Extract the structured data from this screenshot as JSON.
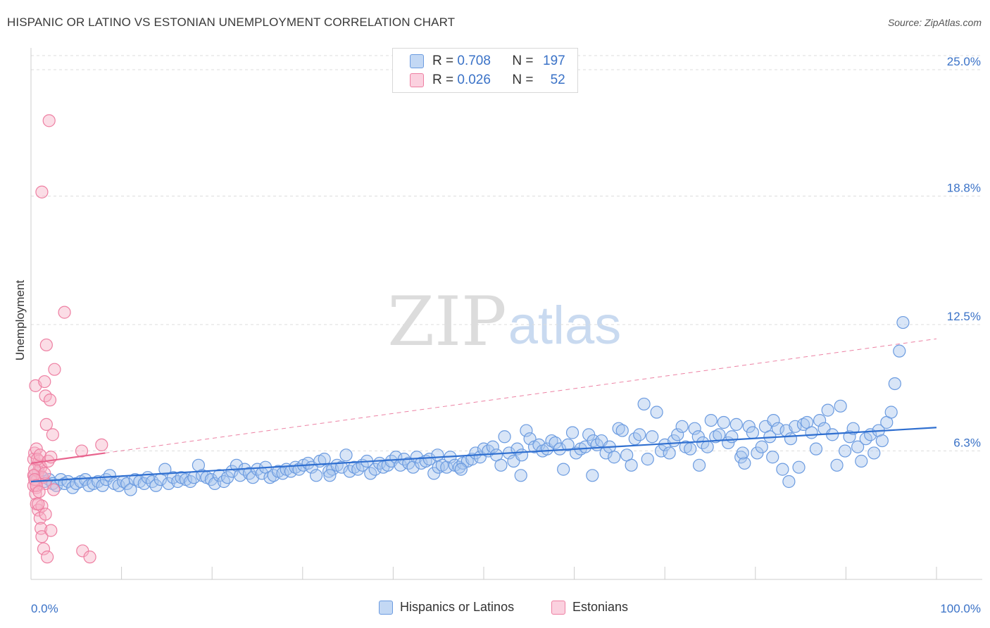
{
  "title": "HISPANIC OR LATINO VS ESTONIAN UNEMPLOYMENT CORRELATION CHART",
  "source": "Source: ZipAtlas.com",
  "watermark": {
    "zip": "ZIP",
    "atlas": "atlas"
  },
  "colors": {
    "blue": "#3a72c7",
    "blue_fill": "#a9c6ee",
    "blue_stroke": "#6b9be0",
    "blue_line": "#2f6fd0",
    "pink_fill": "#f6b3c8",
    "pink_stroke": "#ee7fa2",
    "pink_line": "#e8648e",
    "grid": "#dddddd"
  },
  "legend_top": [
    {
      "r_label": "R = ",
      "r_value": "0.708",
      "n_label": "N = ",
      "n_value": "197",
      "color": "#a9c6ee"
    },
    {
      "r_label": "R = ",
      "r_value": "0.026",
      "n_label": "N = ",
      "n_value": "52",
      "color": "#f6b3c8"
    }
  ],
  "legend_bottom": [
    {
      "label": "Hispanics or Latinos",
      "color": "#a9c6ee"
    },
    {
      "label": "Estonians",
      "color": "#f6b3c8"
    }
  ],
  "chart_data": {
    "type": "scatter",
    "title": "HISPANIC OR LATINO VS ESTONIAN UNEMPLOYMENT CORRELATION CHART",
    "xlabel": "",
    "ylabel": "Unemployment",
    "xlim": [
      0,
      100
    ],
    "ylim": [
      0,
      26.0
    ],
    "x_tick_labels": [
      "0.0%",
      "100.0%"
    ],
    "y_ticks": [
      6.3,
      12.5,
      18.8,
      25.0
    ],
    "y_tick_labels": [
      "6.3%",
      "12.5%",
      "18.8%",
      "25.0%"
    ],
    "grid": "horizontal dashed",
    "legend": "top-center and bottom",
    "series": [
      {
        "name": "Hispanics or Latinos",
        "r": 0.708,
        "n": 197,
        "trend": {
          "x": [
            0,
            100
          ],
          "y": [
            4.8,
            7.45
          ]
        },
        "points": [
          [
            0.5,
            4.9
          ],
          [
            0.8,
            5.3
          ],
          [
            1.2,
            5.0
          ],
          [
            1.5,
            4.8
          ],
          [
            2.0,
            4.9
          ],
          [
            2.4,
            4.7
          ],
          [
            2.8,
            4.6
          ],
          [
            3.3,
            4.9
          ],
          [
            3.7,
            4.7
          ],
          [
            4.1,
            4.8
          ],
          [
            4.6,
            4.5
          ],
          [
            5.0,
            4.7
          ],
          [
            5.5,
            4.8
          ],
          [
            6.0,
            4.9
          ],
          [
            6.4,
            4.6
          ],
          [
            6.9,
            4.7
          ],
          [
            7.4,
            4.8
          ],
          [
            7.9,
            4.6
          ],
          [
            8.3,
            4.9
          ],
          [
            8.7,
            5.1
          ],
          [
            9.2,
            4.7
          ],
          [
            9.7,
            4.6
          ],
          [
            10.2,
            4.8
          ],
          [
            10.6,
            4.7
          ],
          [
            11.0,
            4.4
          ],
          [
            11.5,
            4.9
          ],
          [
            12.0,
            4.8
          ],
          [
            12.5,
            4.7
          ],
          [
            12.9,
            5.0
          ],
          [
            13.4,
            4.8
          ],
          [
            13.8,
            4.6
          ],
          [
            14.3,
            4.9
          ],
          [
            14.8,
            5.4
          ],
          [
            15.2,
            4.7
          ],
          [
            15.7,
            5.0
          ],
          [
            16.2,
            4.8
          ],
          [
            16.6,
            5.0
          ],
          [
            17.1,
            4.9
          ],
          [
            17.6,
            4.8
          ],
          [
            18.0,
            5.0
          ],
          [
            18.5,
            5.6
          ],
          [
            18.9,
            5.1
          ],
          [
            19.4,
            5.0
          ],
          [
            19.9,
            4.9
          ],
          [
            20.3,
            4.7
          ],
          [
            20.8,
            5.1
          ],
          [
            21.3,
            4.8
          ],
          [
            21.7,
            5.0
          ],
          [
            22.2,
            5.3
          ],
          [
            22.7,
            5.6
          ],
          [
            23.1,
            5.1
          ],
          [
            23.6,
            5.4
          ],
          [
            24.1,
            5.2
          ],
          [
            24.5,
            5.0
          ],
          [
            25.0,
            5.4
          ],
          [
            25.5,
            5.2
          ],
          [
            25.9,
            5.5
          ],
          [
            26.4,
            5.0
          ],
          [
            26.8,
            5.1
          ],
          [
            27.3,
            5.3
          ],
          [
            27.8,
            5.2
          ],
          [
            28.2,
            5.4
          ],
          [
            28.7,
            5.3
          ],
          [
            29.2,
            5.5
          ],
          [
            29.6,
            5.4
          ],
          [
            30.1,
            5.6
          ],
          [
            30.6,
            5.7
          ],
          [
            31.0,
            5.5
          ],
          [
            31.5,
            5.1
          ],
          [
            31.9,
            5.8
          ],
          [
            32.4,
            5.9
          ],
          [
            32.9,
            5.3
          ],
          [
            33.3,
            5.4
          ],
          [
            33.8,
            5.6
          ],
          [
            34.3,
            5.5
          ],
          [
            34.8,
            6.1
          ],
          [
            35.2,
            5.3
          ],
          [
            35.7,
            5.5
          ],
          [
            36.1,
            5.4
          ],
          [
            36.6,
            5.6
          ],
          [
            37.1,
            5.8
          ],
          [
            37.5,
            5.2
          ],
          [
            38.0,
            5.4
          ],
          [
            38.5,
            5.7
          ],
          [
            38.9,
            5.5
          ],
          [
            39.4,
            5.6
          ],
          [
            39.8,
            5.8
          ],
          [
            40.3,
            6.0
          ],
          [
            40.8,
            5.6
          ],
          [
            41.2,
            5.9
          ],
          [
            41.7,
            5.7
          ],
          [
            42.2,
            5.5
          ],
          [
            42.6,
            6.0
          ],
          [
            43.1,
            5.7
          ],
          [
            43.6,
            5.8
          ],
          [
            44.0,
            5.9
          ],
          [
            44.5,
            5.2
          ],
          [
            45.0,
            5.5
          ],
          [
            45.4,
            5.6
          ],
          [
            45.9,
            5.5
          ],
          [
            46.3,
            6.0
          ],
          [
            46.8,
            5.6
          ],
          [
            47.3,
            5.5
          ],
          [
            47.7,
            5.7
          ],
          [
            48.2,
            5.8
          ],
          [
            48.7,
            5.9
          ],
          [
            49.1,
            6.2
          ],
          [
            49.6,
            6.0
          ],
          [
            50.0,
            6.4
          ],
          [
            50.5,
            6.3
          ],
          [
            51.0,
            6.5
          ],
          [
            51.4,
            6.1
          ],
          [
            51.9,
            5.6
          ],
          [
            52.3,
            7.0
          ],
          [
            52.8,
            6.2
          ],
          [
            53.3,
            5.8
          ],
          [
            53.7,
            6.4
          ],
          [
            54.2,
            6.1
          ],
          [
            54.7,
            7.3
          ],
          [
            55.1,
            6.9
          ],
          [
            55.6,
            6.5
          ],
          [
            56.1,
            6.6
          ],
          [
            56.5,
            6.3
          ],
          [
            57.0,
            6.4
          ],
          [
            57.5,
            6.8
          ],
          [
            57.9,
            6.7
          ],
          [
            58.4,
            6.4
          ],
          [
            58.8,
            5.4
          ],
          [
            59.3,
            6.6
          ],
          [
            59.8,
            7.2
          ],
          [
            60.2,
            6.2
          ],
          [
            60.7,
            6.4
          ],
          [
            61.2,
            6.5
          ],
          [
            61.6,
            7.1
          ],
          [
            62.1,
            6.8
          ],
          [
            62.5,
            6.6
          ],
          [
            63.0,
            6.8
          ],
          [
            63.5,
            6.2
          ],
          [
            63.9,
            6.5
          ],
          [
            64.4,
            6.0
          ],
          [
            64.9,
            7.4
          ],
          [
            65.3,
            7.3
          ],
          [
            65.8,
            6.1
          ],
          [
            66.3,
            5.6
          ],
          [
            66.7,
            6.9
          ],
          [
            67.2,
            7.1
          ],
          [
            67.7,
            8.6
          ],
          [
            68.1,
            5.9
          ],
          [
            68.6,
            7.0
          ],
          [
            69.1,
            8.2
          ],
          [
            69.6,
            6.3
          ],
          [
            70.0,
            6.6
          ],
          [
            70.5,
            6.2
          ],
          [
            71.0,
            6.8
          ],
          [
            71.4,
            7.1
          ],
          [
            71.9,
            7.5
          ],
          [
            72.3,
            6.5
          ],
          [
            72.8,
            6.4
          ],
          [
            73.3,
            7.4
          ],
          [
            73.7,
            7.0
          ],
          [
            74.2,
            6.7
          ],
          [
            74.7,
            6.5
          ],
          [
            75.1,
            7.8
          ],
          [
            75.6,
            7.0
          ],
          [
            76.0,
            7.1
          ],
          [
            76.5,
            7.7
          ],
          [
            77.0,
            6.7
          ],
          [
            77.4,
            7.0
          ],
          [
            77.9,
            7.6
          ],
          [
            78.4,
            6.0
          ],
          [
            78.8,
            5.7
          ],
          [
            79.3,
            7.5
          ],
          [
            79.7,
            7.2
          ],
          [
            80.2,
            6.2
          ],
          [
            80.7,
            6.5
          ],
          [
            81.1,
            7.5
          ],
          [
            81.6,
            7.0
          ],
          [
            82.0,
            7.8
          ],
          [
            82.5,
            7.4
          ],
          [
            83.0,
            5.4
          ],
          [
            83.4,
            7.3
          ],
          [
            83.9,
            6.9
          ],
          [
            84.4,
            7.5
          ],
          [
            84.8,
            5.5
          ],
          [
            85.3,
            7.6
          ],
          [
            85.7,
            7.7
          ],
          [
            86.2,
            7.2
          ],
          [
            86.7,
            6.4
          ],
          [
            87.1,
            7.8
          ],
          [
            87.6,
            7.4
          ],
          [
            88.0,
            8.3
          ],
          [
            88.5,
            7.1
          ],
          [
            89.0,
            5.6
          ],
          [
            89.4,
            8.5
          ],
          [
            89.9,
            6.3
          ],
          [
            90.4,
            7.0
          ],
          [
            90.8,
            7.4
          ],
          [
            91.3,
            6.5
          ],
          [
            91.7,
            5.8
          ],
          [
            92.2,
            6.9
          ],
          [
            92.7,
            7.1
          ],
          [
            93.1,
            6.2
          ],
          [
            93.6,
            7.3
          ],
          [
            94.0,
            6.8
          ],
          [
            94.5,
            7.7
          ],
          [
            95.0,
            8.2
          ],
          [
            95.4,
            9.6
          ],
          [
            95.9,
            11.2
          ],
          [
            96.3,
            12.6
          ],
          [
            78.6,
            6.2
          ],
          [
            62.0,
            5.1
          ],
          [
            47.5,
            5.4
          ],
          [
            33.0,
            5.1
          ],
          [
            81.9,
            6.0
          ],
          [
            73.8,
            5.6
          ],
          [
            54.1,
            5.1
          ],
          [
            44.9,
            6.1
          ],
          [
            83.7,
            4.8
          ]
        ]
      },
      {
        "name": "Estonians",
        "r": 0.026,
        "n": 52,
        "trend": {
          "x": [
            0,
            8.2
          ],
          "y": [
            5.7,
            6.2
          ]
        },
        "points": [
          [
            0.3,
            5.9
          ],
          [
            0.4,
            5.1
          ],
          [
            0.5,
            4.8
          ],
          [
            0.6,
            4.5
          ],
          [
            0.7,
            4.9
          ],
          [
            0.8,
            5.3
          ],
          [
            0.9,
            5.6
          ],
          [
            0.5,
            4.2
          ],
          [
            0.6,
            3.7
          ],
          [
            0.8,
            3.4
          ],
          [
            1.0,
            3.0
          ],
          [
            1.1,
            2.5
          ],
          [
            1.2,
            2.1
          ],
          [
            1.4,
            1.5
          ],
          [
            1.8,
            1.1
          ],
          [
            0.4,
            6.2
          ],
          [
            0.6,
            6.4
          ],
          [
            0.9,
            5.8
          ],
          [
            1.1,
            5.5
          ],
          [
            1.3,
            5.0
          ],
          [
            1.6,
            4.7
          ],
          [
            0.3,
            4.6
          ],
          [
            0.4,
            5.4
          ],
          [
            0.7,
            5.9
          ],
          [
            1.0,
            6.1
          ],
          [
            1.5,
            5.2
          ],
          [
            1.9,
            5.8
          ],
          [
            2.2,
            6.0
          ],
          [
            2.5,
            4.4
          ],
          [
            0.5,
            9.5
          ],
          [
            1.6,
            9.0
          ],
          [
            1.5,
            9.7
          ],
          [
            2.1,
            8.8
          ],
          [
            2.6,
            10.3
          ],
          [
            1.7,
            11.5
          ],
          [
            1.7,
            7.6
          ],
          [
            2.4,
            7.1
          ],
          [
            1.2,
            19.0
          ],
          [
            2.0,
            22.5
          ],
          [
            3.7,
            13.1
          ],
          [
            5.6,
            6.3
          ],
          [
            7.8,
            6.6
          ],
          [
            0.3,
            5.1
          ],
          [
            0.4,
            4.9
          ],
          [
            0.6,
            4.6
          ],
          [
            0.9,
            4.3
          ],
          [
            1.2,
            3.6
          ],
          [
            1.6,
            3.2
          ],
          [
            2.2,
            2.4
          ],
          [
            5.7,
            1.4
          ],
          [
            6.5,
            1.1
          ],
          [
            0.8,
            3.7
          ]
        ]
      }
    ]
  }
}
